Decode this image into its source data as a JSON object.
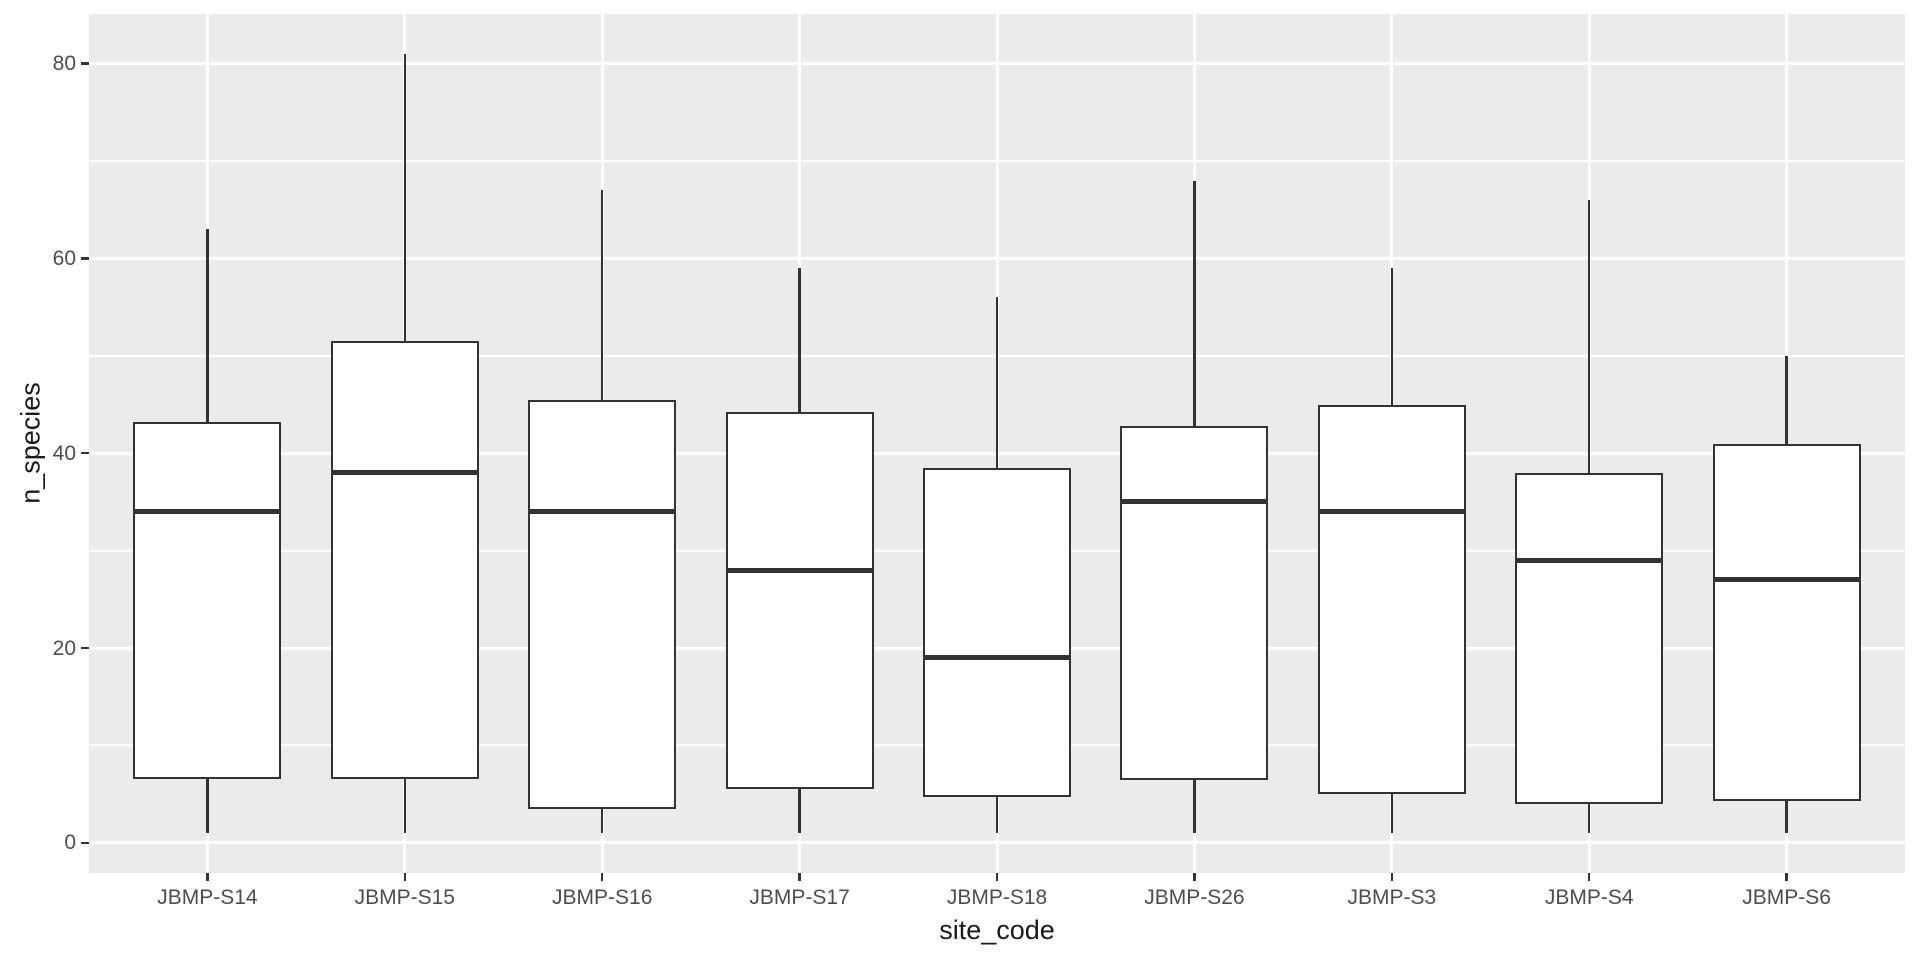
{
  "figure": {
    "background": "#ffffff",
    "panel_background": "#ebebeb",
    "gridline_color": "#ffffff",
    "box_fill": "#ffffff",
    "box_stroke": "#333333",
    "axis_text_color": "#4d4d4d",
    "axis_title_color": "#1a1a1a"
  },
  "chart_data": {
    "type": "boxplot",
    "title": "",
    "xlabel": "site_code",
    "ylabel": "n_species",
    "categories": [
      "JBMP-S14",
      "JBMP-S15",
      "JBMP-S16",
      "JBMP-S17",
      "JBMP-S18",
      "JBMP-S26",
      "JBMP-S3",
      "JBMP-S4",
      "JBMP-S6"
    ],
    "boxes": [
      {
        "site": "JBMP-S14",
        "min": 1,
        "q1": 6.5,
        "median": 34,
        "q3": 43.25,
        "max": 63
      },
      {
        "site": "JBMP-S15",
        "min": 1,
        "q1": 6.5,
        "median": 38,
        "q3": 51.5,
        "max": 81
      },
      {
        "site": "JBMP-S16",
        "min": 1,
        "q1": 3.5,
        "median": 34,
        "q3": 45.5,
        "max": 67
      },
      {
        "site": "JBMP-S17",
        "min": 1,
        "q1": 5.5,
        "median": 28,
        "q3": 44.25,
        "max": 59
      },
      {
        "site": "JBMP-S18",
        "min": 1,
        "q1": 4.75,
        "median": 19,
        "q3": 38.5,
        "max": 56
      },
      {
        "site": "JBMP-S26",
        "min": 1,
        "q1": 6.5,
        "median": 35,
        "q3": 42.75,
        "max": 68
      },
      {
        "site": "JBMP-S3",
        "min": 1,
        "q1": 5,
        "median": 34,
        "q3": 45,
        "max": 59
      },
      {
        "site": "JBMP-S4",
        "min": 1,
        "q1": 4,
        "median": 29,
        "q3": 38,
        "max": 66
      },
      {
        "site": "JBMP-S6",
        "min": 1,
        "q1": 4.25,
        "median": 27,
        "q3": 41,
        "max": 50
      }
    ],
    "y_major_ticks": [
      0,
      20,
      40,
      60,
      80
    ],
    "y_minor_ticks": [
      10,
      30,
      50,
      70
    ],
    "ylim": [
      -3.1,
      85.1
    ],
    "grid": true,
    "legend": false
  }
}
